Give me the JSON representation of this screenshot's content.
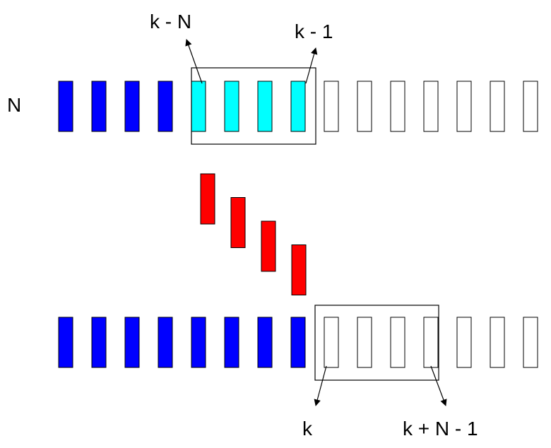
{
  "labels": {
    "row_label": "N",
    "top_left": "k - N",
    "top_right": "k - 1",
    "bottom_left": "k",
    "bottom_right": "k + N - 1"
  },
  "colors": {
    "past": "#0000ff",
    "window": "#00ffff",
    "future": "#ffffff",
    "shift": "#ff0000",
    "outline": "#000000"
  },
  "top_row": [
    "past",
    "past",
    "past",
    "past",
    "window",
    "window",
    "window",
    "window",
    "future",
    "future",
    "future",
    "future",
    "future",
    "future",
    "future",
    "future"
  ],
  "bottom_row": [
    "past",
    "past",
    "past",
    "past",
    "past",
    "past",
    "past",
    "past",
    "future",
    "future",
    "future",
    "future",
    "future",
    "future",
    "future",
    "future"
  ],
  "shift_blocks": 4
}
